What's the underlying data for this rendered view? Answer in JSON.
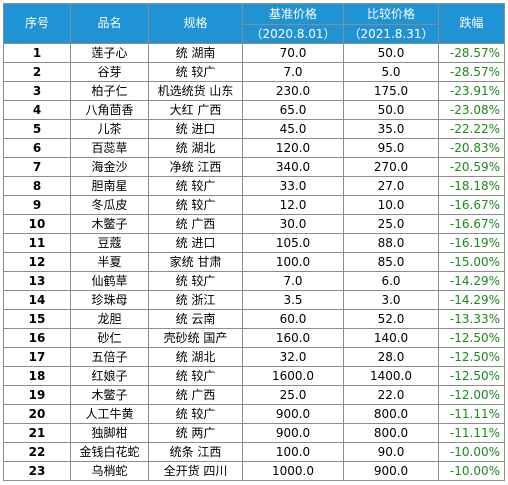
{
  "table": {
    "headers": {
      "no": "序号",
      "name": "品名",
      "spec": "规格",
      "base_label": "基准价格",
      "base_date": "（2020.8.01）",
      "cmp_label": "比较价格",
      "cmp_date": "（2021.8.31）",
      "change": "跌幅"
    },
    "rows": [
      {
        "no": "1",
        "name": "莲子心",
        "spec": "统 湖南",
        "base": "70.0",
        "cmp": "50.0",
        "change": "-28.57%"
      },
      {
        "no": "2",
        "name": "谷芽",
        "spec": "统 较广",
        "base": "7.0",
        "cmp": "5.0",
        "change": "-28.57%"
      },
      {
        "no": "3",
        "name": "柏子仁",
        "spec": "机选统货 山东",
        "base": "230.0",
        "cmp": "175.0",
        "change": "-23.91%"
      },
      {
        "no": "4",
        "name": "八角茴香",
        "spec": "大红 广西",
        "base": "65.0",
        "cmp": "50.0",
        "change": "-23.08%"
      },
      {
        "no": "5",
        "name": "儿茶",
        "spec": "统 进口",
        "base": "45.0",
        "cmp": "35.0",
        "change": "-22.22%"
      },
      {
        "no": "6",
        "name": "百蕊草",
        "spec": "统 湖北",
        "base": "120.0",
        "cmp": "95.0",
        "change": "-20.83%"
      },
      {
        "no": "7",
        "name": "海金沙",
        "spec": "净统 江西",
        "base": "340.0",
        "cmp": "270.0",
        "change": "-20.59%"
      },
      {
        "no": "8",
        "name": "胆南星",
        "spec": "统 较广",
        "base": "33.0",
        "cmp": "27.0",
        "change": "-18.18%"
      },
      {
        "no": "9",
        "name": "冬瓜皮",
        "spec": "统 较广",
        "base": "12.0",
        "cmp": "10.0",
        "change": "-16.67%"
      },
      {
        "no": "10",
        "name": "木鳖子",
        "spec": "统 广西",
        "base": "30.0",
        "cmp": "25.0",
        "change": "-16.67%"
      },
      {
        "no": "11",
        "name": "豆蔻",
        "spec": "统 进口",
        "base": "105.0",
        "cmp": "88.0",
        "change": "-16.19%"
      },
      {
        "no": "12",
        "name": "半夏",
        "spec": "家统 甘肃",
        "base": "100.0",
        "cmp": "85.0",
        "change": "-15.00%"
      },
      {
        "no": "13",
        "name": "仙鹤草",
        "spec": "统 较广",
        "base": "7.0",
        "cmp": "6.0",
        "change": "-14.29%"
      },
      {
        "no": "14",
        "name": "珍珠母",
        "spec": "统 浙江",
        "base": "3.5",
        "cmp": "3.0",
        "change": "-14.29%"
      },
      {
        "no": "15",
        "name": "龙胆",
        "spec": "统 云南",
        "base": "60.0",
        "cmp": "52.0",
        "change": "-13.33%"
      },
      {
        "no": "16",
        "name": "砂仁",
        "spec": "壳砂统 国产",
        "base": "160.0",
        "cmp": "140.0",
        "change": "-12.50%"
      },
      {
        "no": "17",
        "name": "五倍子",
        "spec": "统 湖北",
        "base": "32.0",
        "cmp": "28.0",
        "change": "-12.50%"
      },
      {
        "no": "18",
        "name": "红娘子",
        "spec": "统 较广",
        "base": "1600.0",
        "cmp": "1400.0",
        "change": "-12.50%"
      },
      {
        "no": "19",
        "name": "木鳖子",
        "spec": "统 广西",
        "base": "25.0",
        "cmp": "22.0",
        "change": "-12.00%"
      },
      {
        "no": "20",
        "name": "人工牛黄",
        "spec": "统 较广",
        "base": "900.0",
        "cmp": "800.0",
        "change": "-11.11%"
      },
      {
        "no": "21",
        "name": "独脚柑",
        "spec": "统 两广",
        "base": "900.0",
        "cmp": "800.0",
        "change": "-11.11%"
      },
      {
        "no": "22",
        "name": "金钱白花蛇",
        "spec": "统条 江西",
        "base": "100.0",
        "cmp": "90.0",
        "change": "-10.00%"
      },
      {
        "no": "23",
        "name": "乌梢蛇",
        "spec": "全开货 四川",
        "base": "1000.0",
        "cmp": "900.0",
        "change": "-10.00%"
      }
    ]
  },
  "colors": {
    "header_bg": "#1f93d4",
    "header_text": "#ffffff",
    "change_text": "#1a8a1a",
    "border": "#8c8c8c"
  }
}
